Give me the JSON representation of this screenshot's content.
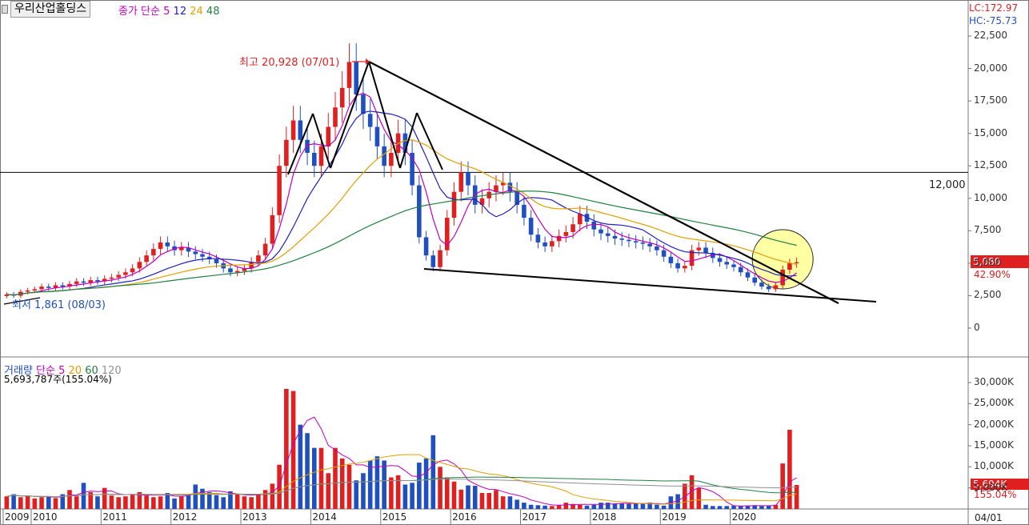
{
  "header": {
    "stock_name": "우리산업홀딩스",
    "price_label": "종가 단순",
    "ma": [
      {
        "label": "5",
        "color": "#c000c0"
      },
      {
        "label": "12",
        "color": "#2020c0"
      },
      {
        "label": "24",
        "color": "#e0a000"
      },
      {
        "label": "48",
        "color": "#208040"
      }
    ]
  },
  "right_axis": {
    "lc": "LC:172.97",
    "hc": "HC:-75.73",
    "last_price": "5,080",
    "last_pct": "42.90%",
    "vol_last": "5,694K",
    "vol_pct": "155.04%",
    "date_label": "04/01"
  },
  "annotations": {
    "high": "최고 20,928 (07/01)",
    "low": "최저 1,861 (08/03)",
    "hline": "12,000"
  },
  "volume_panel": {
    "title": "거래량",
    "ma_label": "단순",
    "ma": [
      {
        "label": "5",
        "color": "#c000c0"
      },
      {
        "label": "20",
        "color": "#e0a000"
      },
      {
        "label": "60",
        "color": "#208040"
      },
      {
        "label": "120",
        "color": "#909090"
      }
    ],
    "current": "5,693,787주(155.04%)"
  },
  "colors": {
    "up": "#e02020",
    "down": "#2050c0",
    "background": "#ffffff",
    "highlight": "#ffff99"
  },
  "chart_data": {
    "type": "candlestick",
    "ylim": [
      0,
      23500
    ],
    "yticks": [
      0,
      2500,
      5000,
      7500,
      10000,
      12500,
      15000,
      17500,
      20000,
      22500
    ],
    "ytick_labels": [
      "0",
      "2,500",
      "5,000",
      "7,500",
      "10,000",
      "12,500",
      "15,000",
      "17,500",
      "20,000",
      "22,500"
    ],
    "hline": 12000,
    "x_labels": [
      "2009",
      "2010",
      "2011",
      "2012",
      "2013",
      "2014",
      "2015",
      "2016",
      "2017",
      "2018",
      "2019",
      "2020"
    ],
    "x_label_index": [
      0,
      4,
      14,
      24,
      34,
      44,
      54,
      64,
      74,
      84,
      94,
      104
    ],
    "high": {
      "value": 20928,
      "date": "07/01",
      "index": 49
    },
    "low": {
      "value": 1861,
      "date": "08/03",
      "index": 0
    },
    "closes": [
      2600,
      2500,
      2800,
      2900,
      3000,
      3200,
      3100,
      3300,
      3200,
      3400,
      3600,
      3500,
      3700,
      3600,
      3800,
      3900,
      4100,
      4300,
      4600,
      5100,
      5600,
      6100,
      6600,
      6300,
      6000,
      6200,
      5900,
      5700,
      5500,
      5300,
      5000,
      4600,
      4300,
      4400,
      4600,
      5100,
      5600,
      6500,
      8700,
      12500,
      14500,
      16000,
      14500,
      13500,
      12500,
      14000,
      15500,
      17000,
      18500,
      20500,
      18000,
      16500,
      15500,
      14000,
      12500,
      13500,
      15000,
      13500,
      11000,
      7000,
      5600,
      4700,
      6000,
      8500,
      10500,
      12000,
      11000,
      9500,
      10000,
      10500,
      11000,
      11200,
      10500,
      9500,
      8500,
      7200,
      6600,
      6300,
      6700,
      7100,
      7400,
      8000,
      8800,
      8200,
      7600,
      7300,
      7100,
      6900,
      6800,
      6700,
      6600,
      6500,
      6300,
      6000,
      5500,
      5000,
      4600,
      4800,
      6000,
      6200,
      5800,
      5400,
      5100,
      4900,
      4700,
      4300,
      3900,
      3500,
      3200,
      3000,
      3300,
      4500,
      5000,
      5080
    ],
    "series": [
      {
        "name": "MA5",
        "values": [
          2600,
          2550,
          2633,
          2700,
          2760,
          2880,
          3000,
          3100,
          3160,
          3240,
          3320,
          3400,
          3480,
          3560,
          3640,
          3700,
          3820,
          3940,
          4140,
          4400,
          4760,
          5140,
          5640,
          5900,
          6120,
          6240,
          6200,
          6020,
          5860,
          5720,
          5480,
          5220,
          4940,
          4720,
          4580,
          4600,
          4800,
          5300,
          6100,
          7680,
          9560,
          11860,
          13240,
          14100,
          14200,
          14100,
          14000,
          14500,
          15600,
          17100,
          17900,
          18100,
          17800,
          16500,
          15300,
          14400,
          14100,
          13700,
          13100,
          12200,
          10500,
          8400,
          6800,
          6360,
          7060,
          8160,
          9400,
          10300,
          10600,
          10700,
          10500,
          10440,
          10640,
          10540,
          10140,
          9380,
          8460,
          7620,
          7060,
          6980,
          6980,
          7100,
          7600,
          7900,
          8000,
          7980,
          7800,
          7400,
          7140,
          6960,
          6820,
          6700,
          6580,
          6420,
          6180,
          5860,
          5480,
          5140,
          5180,
          5320,
          5480,
          5640,
          5700,
          5480,
          5200,
          4860,
          4500,
          4180,
          3880,
          3620,
          3520,
          3600,
          3860,
          4260
        ],
        "color": "#c000c0"
      },
      {
        "name": "MA12",
        "values": [
          2600,
          2550,
          2633,
          2700,
          2760,
          2800,
          2814,
          2850,
          2889,
          2940,
          3000,
          3058,
          3148,
          3240,
          3324,
          3400,
          3484,
          3567,
          3642,
          3775,
          3958,
          4150,
          4375,
          4590,
          4775,
          4967,
          5117,
          5233,
          5308,
          5350,
          5350,
          5308,
          5283,
          5225,
          5158,
          5075,
          5017,
          5100,
          5342,
          5933,
          6808,
          7800,
          8883,
          9983,
          10858,
          11675,
          12442,
          13242,
          14175,
          15358,
          16158,
          16608,
          16708,
          16642,
          16558,
          16483,
          16325,
          16092,
          15500,
          14367,
          13192,
          11958,
          10750,
          10083,
          9917,
          9875,
          9917,
          9917,
          9517,
          8908,
          8583,
          8792,
          9125,
          9617,
          9975,
          10058,
          10025,
          9967,
          9867,
          9550,
          9250,
          9000,
          8800,
          8542,
          8283,
          8100,
          8000,
          7967,
          7925,
          7842,
          7717,
          7567,
          7225,
          6875,
          6567,
          6283,
          6050,
          5883,
          5825,
          5800,
          5792,
          5717,
          5625,
          5508,
          5375,
          5225,
          5008,
          4733,
          4525,
          4342,
          4125,
          4050,
          4017,
          4050
        ],
        "color": "#2020c0"
      },
      {
        "name": "MA24",
        "values": [
          2600,
          2550,
          2633,
          2700,
          2760,
          2800,
          2814,
          2850,
          2889,
          2940,
          3000,
          3029,
          3075,
          3100,
          3150,
          3200,
          3260,
          3330,
          3410,
          3510,
          3630,
          3770,
          3920,
          4050,
          4180,
          4310,
          4430,
          4540,
          4640,
          4720,
          4780,
          4810,
          4840,
          4860,
          4880,
          4900,
          4950,
          5010,
          5160,
          5440,
          5820,
          6260,
          6750,
          7250,
          7730,
          8240,
          8780,
          9370,
          10010,
          10720,
          11370,
          11960,
          12530,
          13020,
          13410,
          13820,
          14220,
          14450,
          14500,
          14320,
          14100,
          13740,
          13360,
          13040,
          12820,
          12620,
          12450,
          12280,
          12030,
          11730,
          11460,
          11230,
          10960,
          10710,
          10370,
          9970,
          9590,
          9360,
          9240,
          9190,
          9200,
          9220,
          9250,
          9170,
          9050,
          8900,
          8760,
          8620,
          8460,
          8300,
          8140,
          7990,
          7830,
          7640,
          7430,
          7240,
          7070,
          6950,
          6870,
          6790,
          6720,
          6640,
          6560,
          6460,
          6340,
          6190,
          6030,
          5860,
          5670,
          5470,
          5290,
          5150,
          5020,
          4900
        ],
        "color": "#e0a000"
      },
      {
        "name": "MA48",
        "values": [
          2600,
          2550,
          2633,
          2700,
          2760,
          2800,
          2814,
          2850,
          2889,
          2940,
          3000,
          3029,
          3075,
          3100,
          3150,
          3200,
          3260,
          3300,
          3340,
          3380,
          3430,
          3480,
          3550,
          3620,
          3690,
          3760,
          3830,
          3900,
          3960,
          4020,
          4080,
          4140,
          4200,
          4260,
          4330,
          4400,
          4480,
          4570,
          4690,
          4840,
          5010,
          5190,
          5390,
          5600,
          5810,
          6030,
          6270,
          6530,
          6800,
          7090,
          7380,
          7650,
          7910,
          8150,
          8380,
          8600,
          8830,
          9040,
          9210,
          9350,
          9470,
          9560,
          9650,
          9740,
          9830,
          9930,
          10030,
          10120,
          10200,
          10270,
          10340,
          10400,
          10460,
          10520,
          10550,
          10560,
          10540,
          10500,
          10440,
          10350,
          10240,
          10120,
          10000,
          9880,
          9760,
          9640,
          9520,
          9410,
          9300,
          9200,
          9100,
          9000,
          8900,
          8800,
          8700,
          8600,
          8480,
          8360,
          8250,
          8140,
          8040,
          7930,
          7830,
          7730,
          7620,
          7500,
          7370,
          7230,
          7080,
          6920,
          6770,
          6630,
          6500,
          6380
        ],
        "color": "#208040"
      }
    ],
    "volume": {
      "ylim": [
        0,
        32000
      ],
      "ytick_labels": [
        "5,000K",
        "10,000K",
        "15,000K",
        "20,000K",
        "25,000K",
        "30,000K"
      ],
      "yticks": [
        5000,
        10000,
        15000,
        20000,
        25000,
        30000
      ],
      "unit": "K",
      "values": [
        3000,
        3500,
        2800,
        3200,
        2500,
        2800,
        3000,
        2600,
        3500,
        4500,
        3000,
        6200,
        4000,
        3000,
        5000,
        3200,
        2800,
        3000,
        3500,
        4000,
        3200,
        2800,
        3000,
        3800,
        2500,
        3000,
        3500,
        5800,
        4800,
        4000,
        3300,
        2800,
        4200,
        3600,
        3000,
        2800,
        3500,
        4500,
        6000,
        10500,
        28500,
        28000,
        20000,
        18000,
        14500,
        14500,
        8500,
        14500,
        12000,
        10500,
        6800,
        8500,
        11500,
        12500,
        11500,
        7500,
        8000,
        5800,
        6200,
        11000,
        12000,
        17500,
        10000,
        7500,
        6500,
        4600,
        5600,
        5500,
        3800,
        3800,
        4500,
        3000,
        3000,
        2200,
        1500,
        1000,
        900,
        800,
        700,
        1000,
        1500,
        1200,
        1000,
        800,
        1000,
        1500,
        1500,
        1300,
        1300,
        1200,
        1400,
        1300,
        1500,
        1000,
        800,
        3000,
        3500,
        6000,
        8000,
        5000,
        1000,
        700,
        700,
        700,
        800,
        700,
        800,
        900,
        700,
        800,
        1000,
        10800,
        18800,
        5700
      ]
    }
  }
}
